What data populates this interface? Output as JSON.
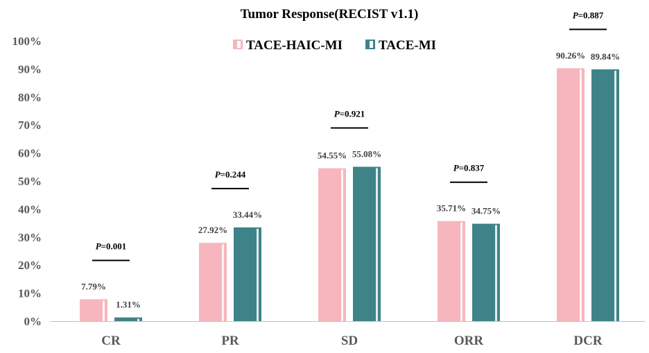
{
  "chart_data": {
    "type": "bar",
    "title": "Tumor Response(RECIST v1.1)",
    "categories": [
      "CR",
      "PR",
      "SD",
      "ORR",
      "DCR"
    ],
    "series": [
      {
        "name": "TACE-HAIC-MI",
        "values": [
          7.79,
          27.92,
          54.55,
          35.71,
          90.26
        ],
        "labels": [
          "7.79%",
          "27.92%",
          "54.55%",
          "35.71%",
          "90.26%"
        ],
        "color": "#f7b6bd"
      },
      {
        "name": "TACE-MI",
        "values": [
          1.31,
          33.44,
          55.08,
          34.75,
          89.84
        ],
        "labels": [
          "1.31%",
          "33.44%",
          "55.08%",
          "34.75%",
          "89.84%"
        ],
        "color": "#3e8388"
      }
    ],
    "p_values": [
      {
        "prefix": "P",
        "value": "=0.001"
      },
      {
        "prefix": "P",
        "value": "=0.244"
      },
      {
        "prefix": "P",
        "value": "=0.921"
      },
      {
        "prefix": "P",
        "value": "=0.837"
      },
      {
        "prefix": "P",
        "value": "=0.887"
      }
    ],
    "y_ticks": [
      "0%",
      "10%",
      "20%",
      "30%",
      "40%",
      "50%",
      "60%",
      "70%",
      "80%",
      "90%",
      "100%"
    ],
    "ylim": [
      0,
      100
    ],
    "grid": false,
    "legend_position": "top-center"
  }
}
